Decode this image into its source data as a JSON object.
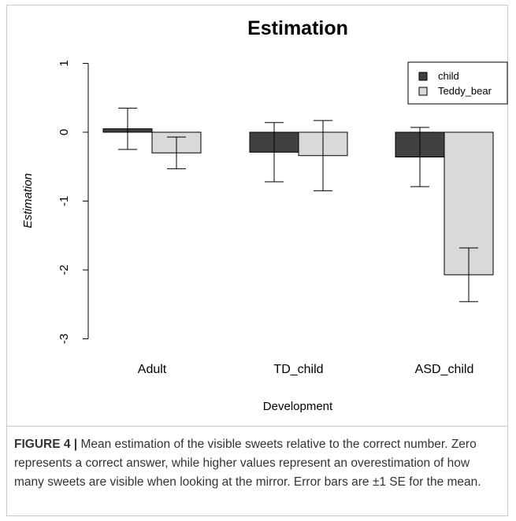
{
  "chart_data": {
    "type": "bar",
    "title": "Estimation",
    "xlabel": "Development",
    "ylabel": "Estimation",
    "categories": [
      "Adult",
      "TD_child",
      "ASD_child"
    ],
    "series": [
      {
        "name": "child",
        "values": [
          0.05,
          -0.29,
          -0.36
        ],
        "error_low": [
          -0.25,
          -0.72,
          -0.79
        ],
        "error_high": [
          0.35,
          0.14,
          0.07
        ]
      },
      {
        "name": "Teddy_bear",
        "values": [
          -0.3,
          -0.34,
          -2.07
        ],
        "error_low": [
          -0.53,
          -0.85,
          -2.46
        ],
        "error_high": [
          -0.07,
          0.17,
          -1.68
        ]
      }
    ],
    "yticks": [
      1,
      0,
      -1,
      -2,
      -3
    ],
    "ytick_labels": [
      "1",
      "0",
      "-1",
      "-2",
      "-3"
    ],
    "ylim": [
      -3,
      1
    ],
    "grid": false,
    "legend_position": "top-right",
    "colors": {
      "child": "#404040",
      "Teddy_bear": "#d9d9d9"
    }
  },
  "caption": {
    "label": "FIGURE 4 |",
    "text": " Mean estimation of the visible sweets relative to the correct number. Zero represents a correct answer, while higher values represent an overestimation of how many sweets are visible when looking at the mirror. Error bars are ±1 SE for the mean."
  }
}
